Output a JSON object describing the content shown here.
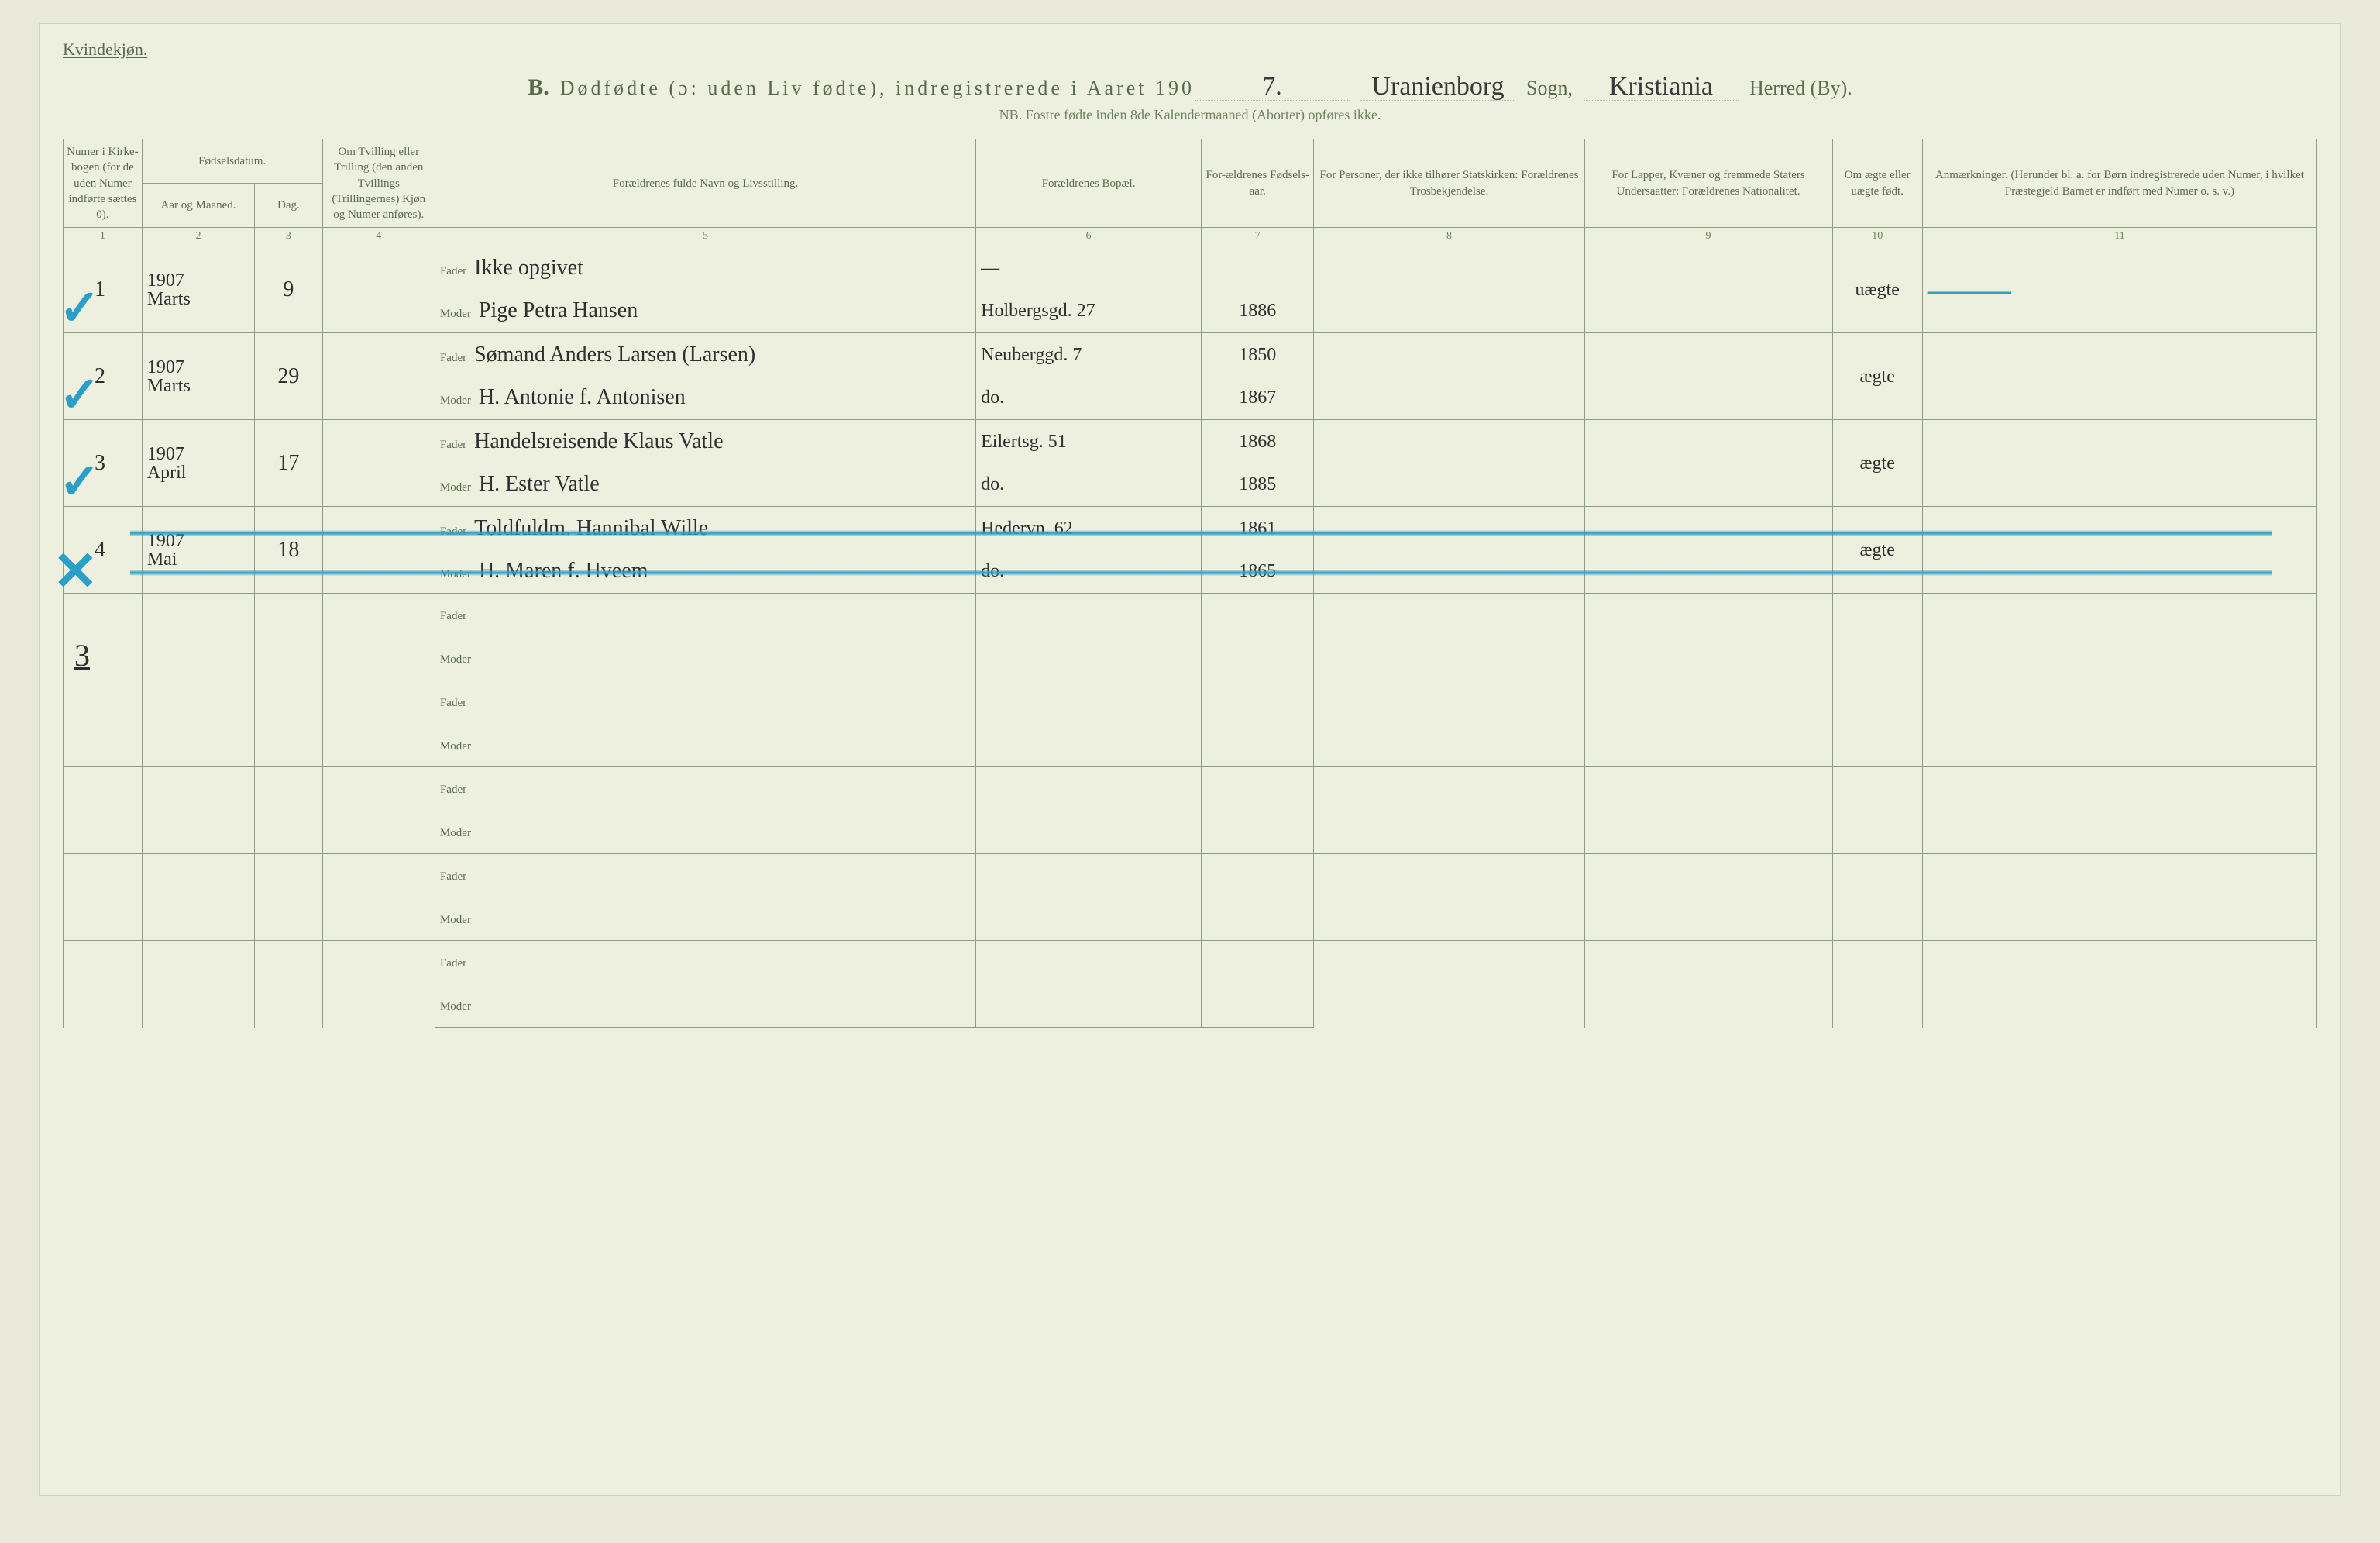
{
  "header": {
    "genderLabel": "Kvindekjøn.",
    "titlePrefix": "B.",
    "titleMain": "Dødfødte (ɔ: uden Liv fødte), indregistrerede i Aaret 190",
    "yearDigit": "7.",
    "sognValue": "Uranienborg",
    "sognLabel": "Sogn,",
    "herredValue": "Kristiania",
    "herredLabel": "Herred (By).",
    "subtitle": "NB.  Fostre fødte inden 8de Kalendermaaned (Aborter) opføres ikke."
  },
  "columns": {
    "c1": "Numer i Kirke-bogen (for de uden Numer indførte sættes 0).",
    "c2group": "Fødselsdatum.",
    "c2": "Aar og Maaned.",
    "c3": "Dag.",
    "c4": "Om Tvilling eller Trilling (den anden Tvillings (Trillingernes) Kjøn og Numer anføres).",
    "c5": "Forældrenes fulde Navn og Livsstilling.",
    "c6": "Forældrenes Bopæl.",
    "c7": "For-ældrenes Fødsels-aar.",
    "c8": "For Personer, der ikke tilhører Statskirken: Forældrenes Trosbekjendelse.",
    "c9": "For Lapper, Kvæner og fremmede Staters Undersaatter: Forældrenes Nationalitet.",
    "c10": "Om ægte eller uægte født.",
    "c11": "Anmærkninger. (Herunder bl. a. for Børn indregistrerede uden Numer, i hvilket Præstegjeld Barnet er indført med Numer o. s. v.)"
  },
  "colNums": [
    "1",
    "2",
    "3",
    "4",
    "5",
    "6",
    "7",
    "8",
    "9",
    "10",
    "11"
  ],
  "labels": {
    "fader": "Fader",
    "moder": "Moder"
  },
  "rows": [
    {
      "mark": "V",
      "markType": "check",
      "num": "1",
      "year": "1907",
      "month": "Marts",
      "day": "9",
      "fader": "Ikke opgivet",
      "faderBopael": "—",
      "faderAar": "",
      "moder": "Pige Petra Hansen",
      "moderBopael": "Holbergsgd. 27",
      "moderAar": "1886",
      "aegte": "uægte",
      "anm": "———",
      "anmIsDash": true,
      "struck": false
    },
    {
      "mark": "V",
      "markType": "check",
      "num": "2",
      "year": "1907",
      "month": "Marts",
      "day": "29",
      "fader": "Sømand Anders Larsen (Larsen)",
      "faderBopael": "Neuberggd. 7",
      "faderAar": "1850",
      "moder": "H. Antonie f. Antonisen",
      "moderBopael": "do.",
      "moderAar": "1867",
      "aegte": "ægte",
      "anm": "",
      "struck": false
    },
    {
      "mark": "V",
      "markType": "check",
      "num": "3",
      "year": "1907",
      "month": "April",
      "day": "17",
      "fader": "Handelsreisende Klaus Vatle",
      "faderBopael": "Eilertsg. 51",
      "faderAar": "1868",
      "moder": "H. Ester Vatle",
      "moderBopael": "do.",
      "moderAar": "1885",
      "aegte": "ægte",
      "anm": "",
      "struck": false
    },
    {
      "mark": "X",
      "markType": "cross",
      "num": "4",
      "year": "1907",
      "month": "Mai",
      "day": "18",
      "fader": "Toldfuldm. Hannibal Wille",
      "faderBopael": "Hedervn. 62",
      "faderAar": "1861",
      "moder": "H. Maren f. Hveem",
      "moderBopael": "do.",
      "moderAar": "1865",
      "aegte": "ægte",
      "anm": "",
      "struck": true
    }
  ],
  "marginMark": "3",
  "emptyRowCount": 5,
  "style": {
    "bgPage": "#eef0df",
    "bgOuter": "#e8e9d8",
    "borderColor": "#8aa080",
    "printColor": "#5a6a50",
    "handColor": "#2f2f2f",
    "blueMark": "#2aa0c8",
    "headerFontSize": 15,
    "handFontSize": 28,
    "rowHeightPx": 56
  }
}
